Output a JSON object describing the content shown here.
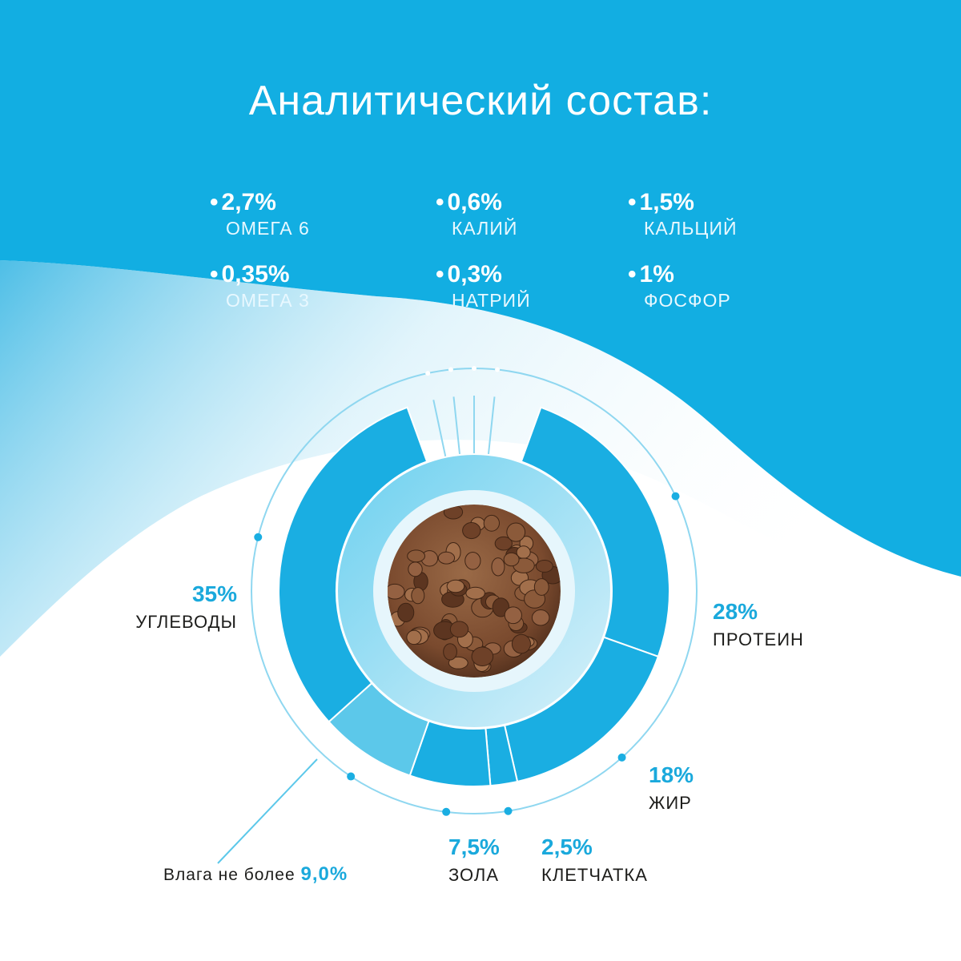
{
  "colors": {
    "accent": "#1aaee2",
    "accent_light": "#5cc8ea",
    "label_blue": "#1aa9dc",
    "text_dark": "#1d1d1b"
  },
  "title": "Аналитический состав:",
  "nutrients": [
    {
      "value": "2,7%",
      "label": "ОМЕГА 6"
    },
    {
      "value": "0,6%",
      "label": "КАЛИЙ"
    },
    {
      "value": "1,5%",
      "label": "КАЛЬЦИЙ"
    },
    {
      "value": "0,35%",
      "label": "ОМЕГА 3"
    },
    {
      "value": "0,3%",
      "label": "НАТРИЙ"
    },
    {
      "value": "1%",
      "label": "ФОСФОР"
    }
  ],
  "chart_data": {
    "type": "pie",
    "variant": "donut",
    "center_image": "dry-kibble-food",
    "slices": [
      {
        "name": "ПРОТЕИН",
        "label": "28%",
        "value": 28
      },
      {
        "name": "ЖИР",
        "label": "18%",
        "value": 18
      },
      {
        "name": "КЛЕТЧАТКА",
        "label": "2,5%",
        "value": 2.5
      },
      {
        "name": "ЗОЛА",
        "label": "7,5%",
        "value": 7.5
      },
      {
        "name": "Влага не более",
        "label": "9,0%",
        "value": 9.0
      },
      {
        "name": "УГЛЕВОДЫ",
        "label": "35%",
        "value": 35
      }
    ]
  }
}
